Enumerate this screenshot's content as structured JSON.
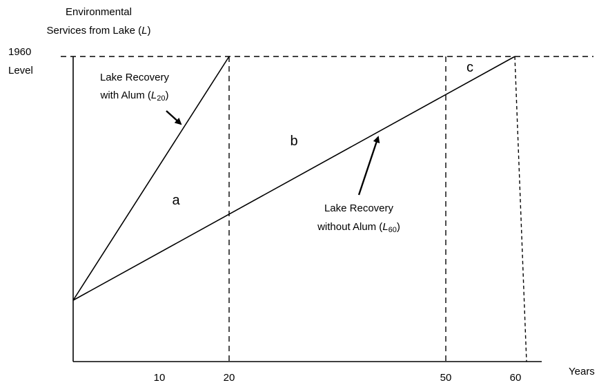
{
  "y_axis": {
    "title_line1": "Environmental",
    "title_line2_prefix": "Services from Lake (",
    "title_line2_var": "L",
    "title_line2_suffix": ")",
    "level_line1": "1960",
    "level_line2": "Level"
  },
  "x_axis": {
    "title": "Years",
    "ticks": [
      "10",
      "20",
      "50",
      "60"
    ]
  },
  "curves": {
    "with_alum": {
      "line1": "Lake Recovery",
      "line2_prefix": "with Alum (",
      "line2_var": "L",
      "line2_sub": "20",
      "line2_suffix": ")"
    },
    "without_alum": {
      "line1": "Lake  Recovery",
      "line2_prefix": "without Alum (",
      "line2_var": "L",
      "line2_sub": "60",
      "line2_suffix": ")"
    }
  },
  "regions": {
    "a": "a",
    "b": "b",
    "c": "c"
  },
  "colors": {
    "ink": "#000000",
    "background": "#ffffff"
  }
}
